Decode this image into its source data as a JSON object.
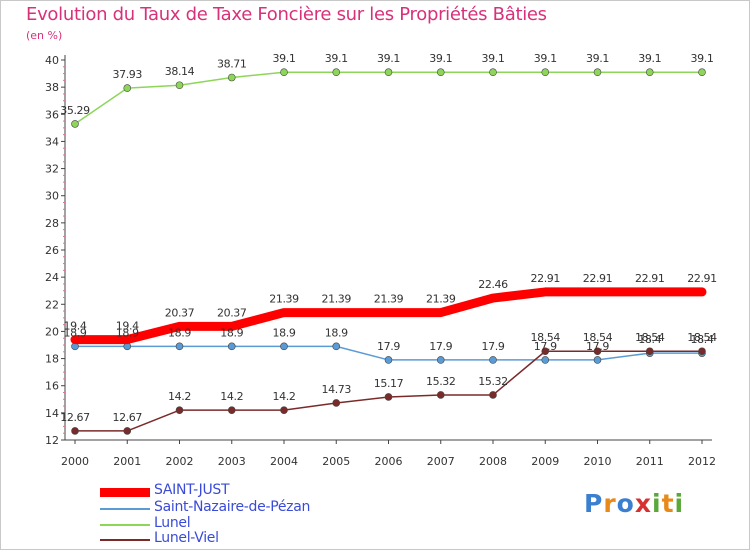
{
  "header": {
    "title": "Evolution du Taux de Taxe Foncière sur les Propriétés Bâties",
    "subtitle": "(en %)"
  },
  "logo": {
    "text": "Proxiti",
    "colors": [
      "#3b7fd0",
      "#e88a1a",
      "#3b7fd0",
      "#d63030",
      "#5aa83a",
      "#e88a1a",
      "#5aa83a"
    ]
  },
  "chart_data": {
    "type": "line",
    "categories": [
      "2000",
      "2001",
      "2002",
      "2003",
      "2004",
      "2005",
      "2006",
      "2007",
      "2008",
      "2009",
      "2010",
      "2011",
      "2012"
    ],
    "ylim": [
      12,
      40
    ],
    "yticks": [
      12,
      14,
      16,
      18,
      20,
      22,
      24,
      26,
      28,
      30,
      32,
      34,
      36,
      38,
      40
    ],
    "grid": false,
    "legend_position": "bottom-left",
    "series": [
      {
        "name": "SAINT-JUST",
        "color": "#ff0000",
        "values": [
          19.4,
          19.4,
          20.37,
          20.37,
          21.39,
          21.39,
          21.39,
          21.39,
          22.46,
          22.91,
          22.91,
          22.91,
          22.91
        ],
        "labels": [
          "19.4",
          "19.4",
          "20.37",
          "20.37",
          "21.39",
          "21.39",
          "21.39",
          "21.39",
          "22.46",
          "22.91",
          "22.91",
          "22.91",
          "22.91"
        ]
      },
      {
        "name": "Saint-Nazaire-de-Pézan",
        "color": "#5b9bd5",
        "values": [
          18.9,
          18.9,
          18.9,
          18.9,
          18.9,
          18.9,
          17.9,
          17.9,
          17.9,
          17.9,
          17.9,
          18.4,
          18.4
        ],
        "labels": [
          "18.9",
          "18.9",
          "18.9",
          "18.9",
          "18.9",
          "18.9",
          "17.9",
          "17.9",
          "17.9",
          "17.9",
          "17.9",
          "18.4",
          "18.4"
        ]
      },
      {
        "name": "Lunel",
        "color": "#8dd65a",
        "values": [
          35.29,
          37.93,
          38.14,
          38.71,
          39.1,
          39.1,
          39.1,
          39.1,
          39.1,
          39.1,
          39.1,
          39.1,
          39.1
        ],
        "labels": [
          "35.29",
          "37.93",
          "38.14",
          "38.71",
          "39.1",
          "39.1",
          "39.1",
          "39.1",
          "39.1",
          "39.1",
          "39.1",
          "39.1",
          "39.1"
        ]
      },
      {
        "name": "Lunel-Viel",
        "color": "#7b2a2a",
        "values": [
          12.67,
          12.67,
          14.2,
          14.2,
          14.2,
          14.73,
          15.17,
          15.32,
          15.32,
          18.54,
          18.54,
          18.54,
          18.54
        ],
        "labels": [
          "12.67",
          "12.67",
          "14.2",
          "14.2",
          "14.2",
          "14.73",
          "15.17",
          "15.32",
          "15.32",
          "18.54",
          "18.54",
          "18.54",
          "18.54"
        ]
      }
    ]
  }
}
